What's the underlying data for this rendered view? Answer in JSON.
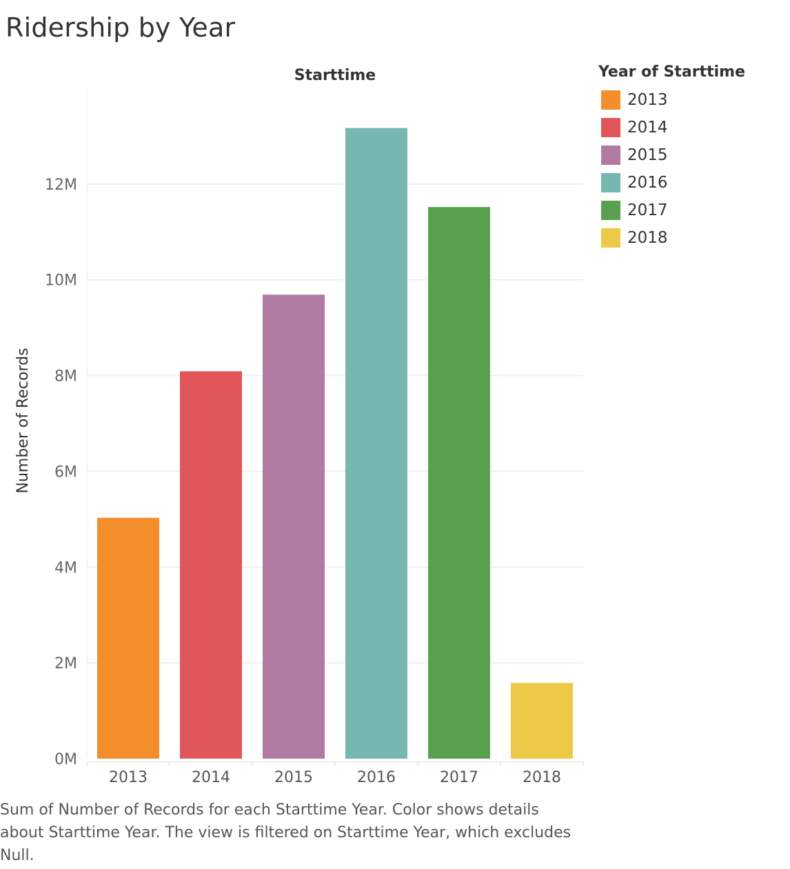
{
  "title": "Ridership by Year",
  "caption": "Sum of Number of Records for each Starttime Year.  Color shows details about Starttime Year. The view is filtered on Starttime Year, which excludes Null.",
  "chart_data": {
    "type": "bar",
    "title": "Ridership by Year",
    "column_header": "Starttime",
    "xlabel": "",
    "ylabel": "Number of Records",
    "categories": [
      "2013",
      "2014",
      "2015",
      "2016",
      "2017",
      "2018"
    ],
    "values": [
      5030000,
      8090000,
      9690000,
      13170000,
      11520000,
      1580000
    ],
    "colors": [
      "#f28e2b",
      "#e15759",
      "#b07aa1",
      "#76b7b2",
      "#59a14f",
      "#edc948"
    ],
    "ylim": [
      0,
      14000000
    ],
    "y_ticks": [
      0,
      2000000,
      4000000,
      6000000,
      8000000,
      10000000,
      12000000
    ],
    "y_tick_labels": [
      "0M",
      "2M",
      "4M",
      "6M",
      "8M",
      "10M",
      "12M"
    ],
    "grid": true,
    "legend": {
      "title": "Year of Starttime",
      "placement": "right",
      "entries": [
        "2013",
        "2014",
        "2015",
        "2016",
        "2017",
        "2018"
      ]
    }
  }
}
